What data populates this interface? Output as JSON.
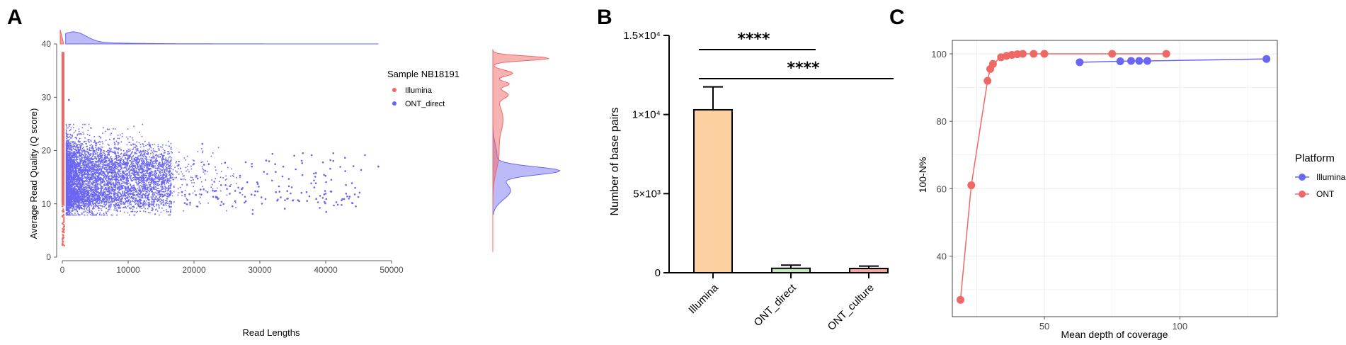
{
  "chart_data": [
    {
      "panel": "A",
      "type": "scatter",
      "xlabel": "Read Lengths",
      "ylabel": "Average Read Quality (Q score)",
      "xlim": [
        0,
        50000
      ],
      "ylim": [
        0,
        40
      ],
      "xticks": [
        "0",
        "10000",
        "20000",
        "30000",
        "40000",
        "50000"
      ],
      "yticks": [
        "0",
        "10",
        "20",
        "30",
        "40"
      ],
      "legend": {
        "title": "Sample NB18191",
        "position": "top-right",
        "entries": [
          "Illumina",
          "ONT_direct"
        ]
      },
      "series": [
        {
          "name": "Illumina",
          "color": "#f06866",
          "x_range": [
            100,
            300
          ],
          "y_range": [
            2,
            38.5
          ]
        },
        {
          "name": "ONT_direct",
          "color": "#6b66f2",
          "x_range": [
            500,
            48000
          ],
          "y_range": [
            8,
            29.5
          ],
          "density_peak_q": 16.2
        }
      ],
      "marginal": "density"
    },
    {
      "panel": "B",
      "type": "bar",
      "ylabel": "Number of base pairs",
      "ylim": [
        0,
        15000
      ],
      "yticks": [
        "0",
        "5×10³",
        "1×10⁴",
        "1.5×10⁴"
      ],
      "categories": [
        "Illumina",
        "ONT_direct",
        "ONT_culture"
      ],
      "values": [
        10300,
        280,
        270
      ],
      "errors": [
        1450,
        200,
        150
      ],
      "colors": [
        "#fdd0a2",
        "#c7e9c0",
        "#f4a6a6"
      ],
      "significance": [
        {
          "from": "Illumina",
          "to": "ONT_direct",
          "label": "****"
        },
        {
          "from": "Illumina",
          "to": "ONT_culture",
          "label": "****"
        }
      ]
    },
    {
      "panel": "C",
      "type": "line",
      "xlabel": "Mean depth of coverage",
      "ylabel": "100-N%",
      "xlim": [
        16,
        136
      ],
      "ylim": [
        22,
        104
      ],
      "xticks": [
        50,
        100
      ],
      "yticks": [
        40,
        60,
        80,
        100
      ],
      "legend": {
        "title": "Platform",
        "position": "right"
      },
      "series": [
        {
          "name": "Illumina",
          "color": "#6b66f2",
          "x": [
            63,
            78,
            82,
            85,
            88,
            132
          ],
          "y": [
            97.5,
            97.8,
            97.9,
            97.9,
            97.9,
            98.5
          ]
        },
        {
          "name": "ONT",
          "color": "#f06866",
          "x": [
            19,
            23,
            29,
            30,
            31,
            34,
            36,
            38,
            40,
            42,
            46,
            50,
            75,
            95
          ],
          "y": [
            27,
            61,
            92,
            95.5,
            97,
            99,
            99.4,
            99.7,
            99.9,
            100,
            100,
            100,
            100,
            100
          ]
        }
      ]
    }
  ],
  "panels": {
    "a": "A",
    "b": "B",
    "c": "C"
  }
}
